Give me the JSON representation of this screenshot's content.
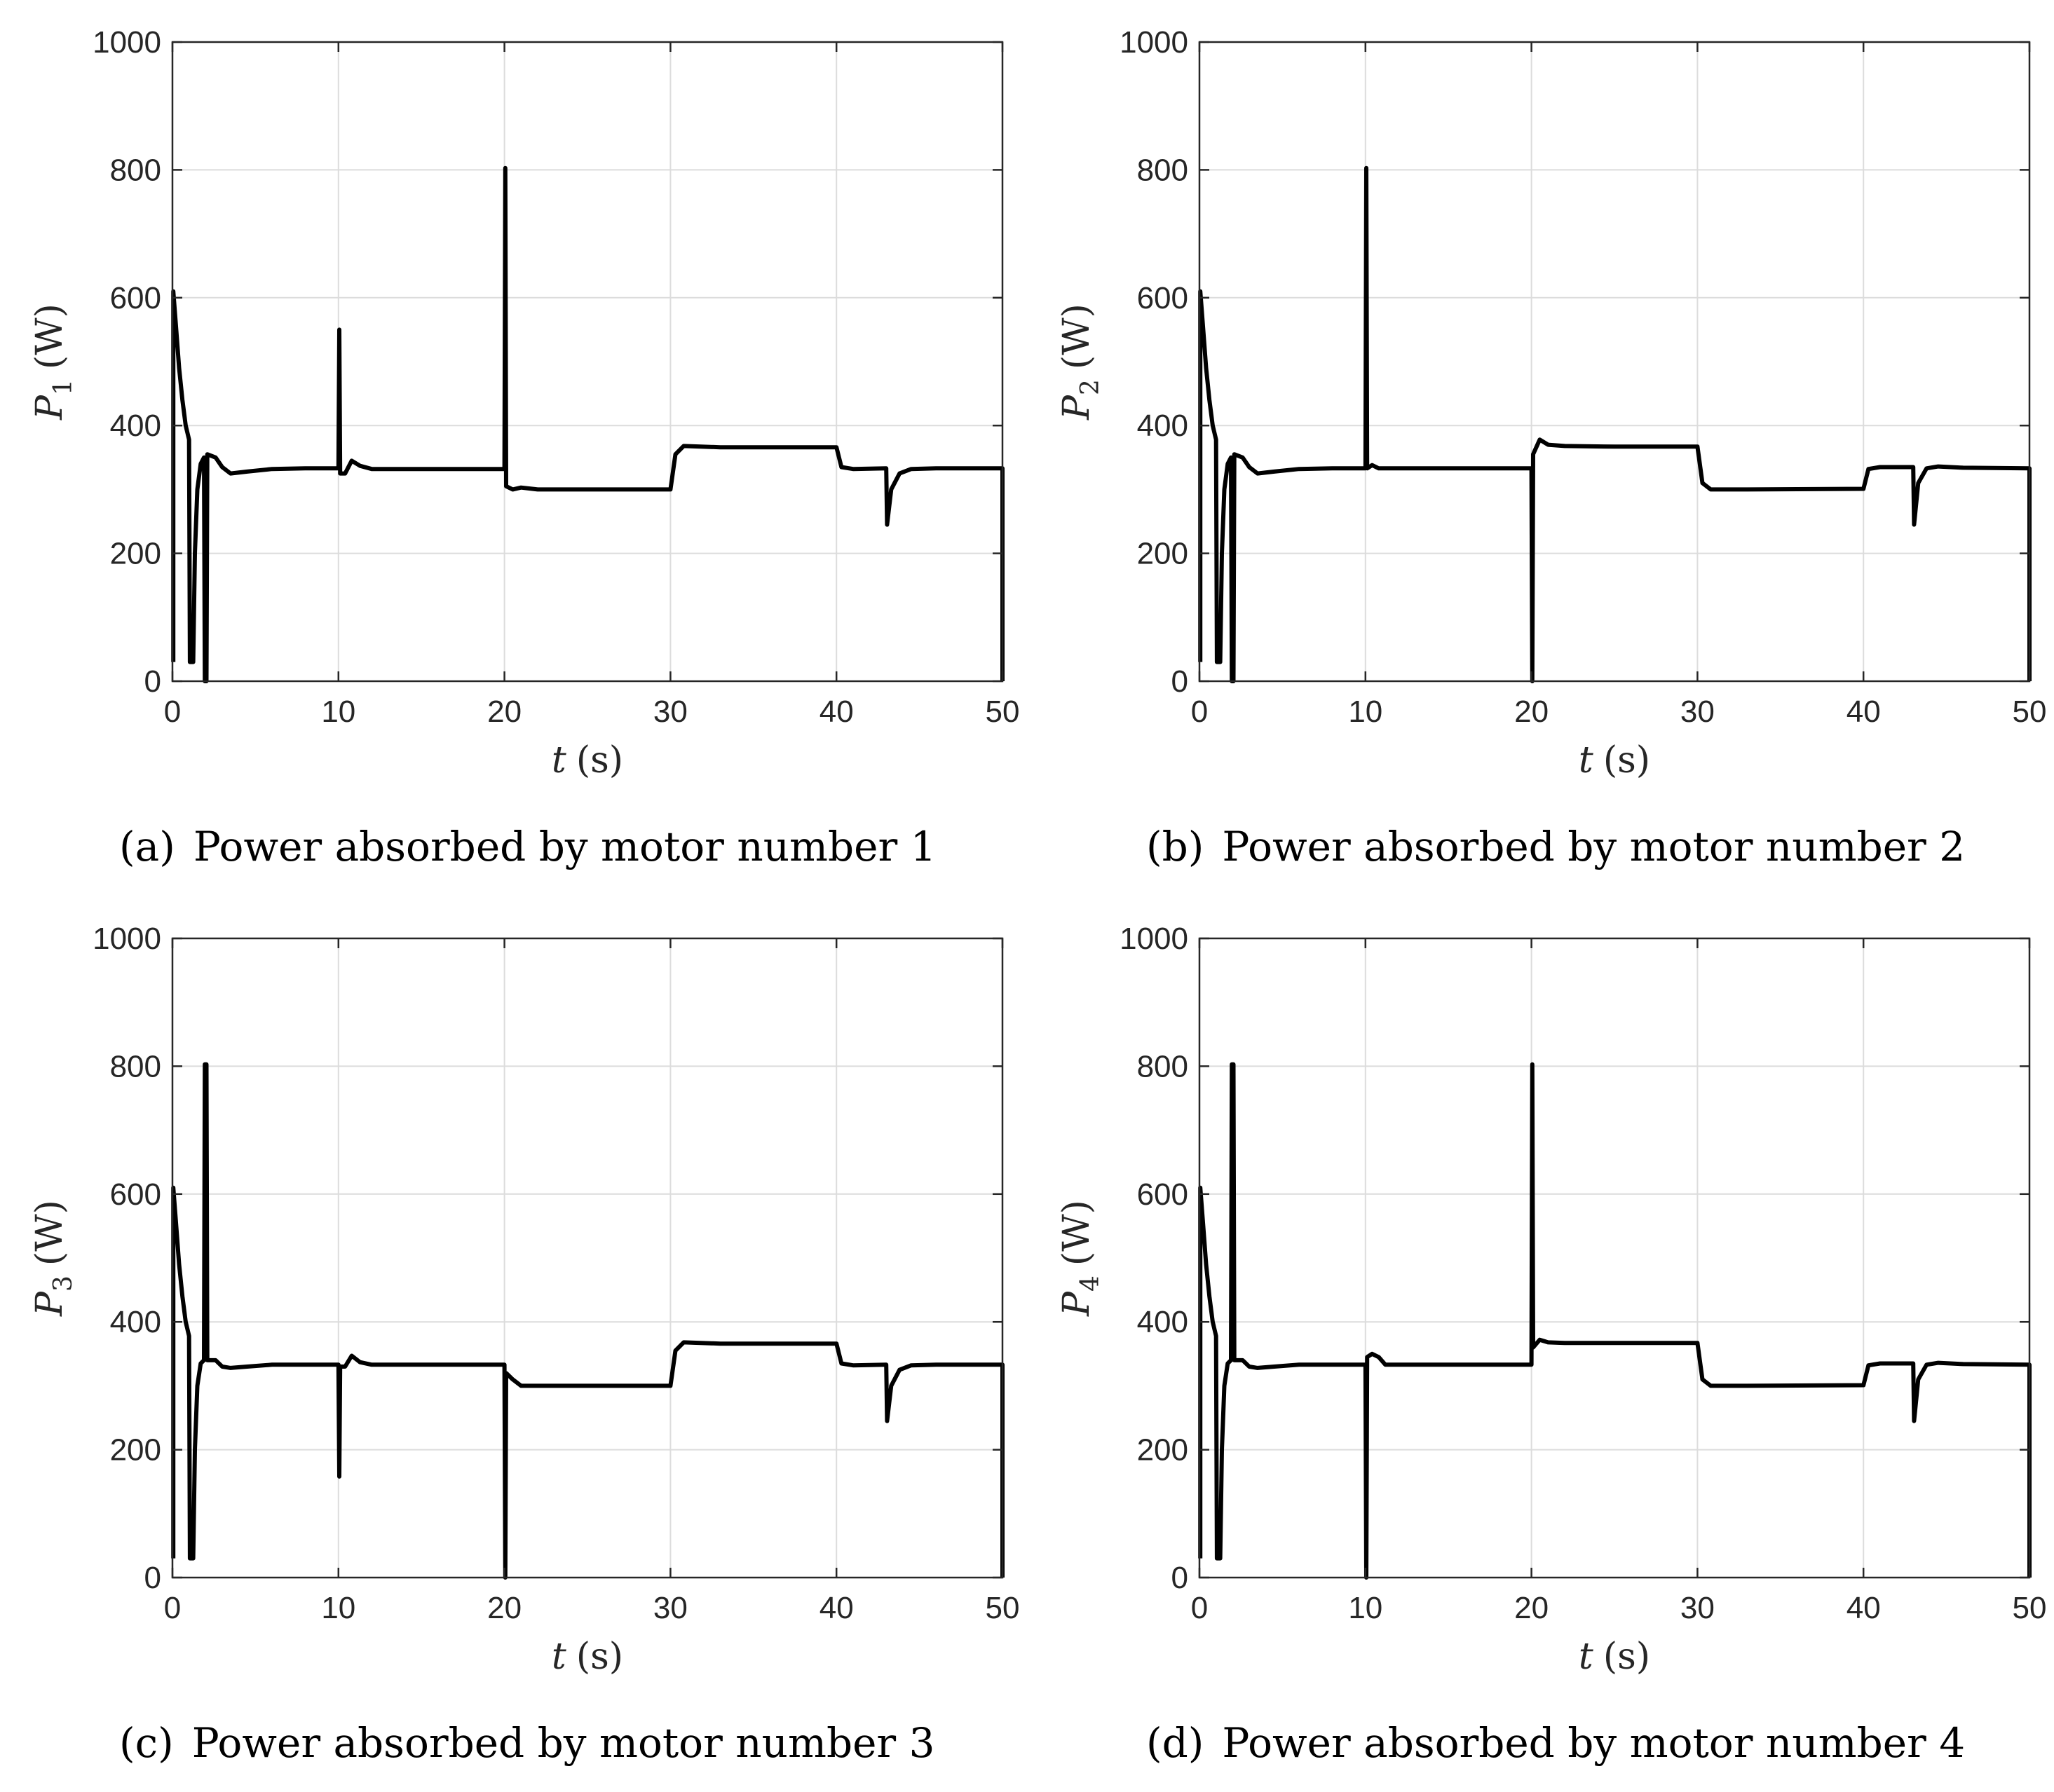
{
  "chart_data": [
    {
      "type": "line",
      "panel_id": "a",
      "caption_tag": "(a)",
      "caption_text": "Power absorbed by motor number 1",
      "ylabel_symbol": "P",
      "ylabel_sub": "1",
      "ylabel_unit": "(W)",
      "xlabel_symbol": "t",
      "xlabel_unit": "(s)",
      "xlim": [
        0,
        50
      ],
      "ylim": [
        0,
        1000
      ],
      "xticks": [
        "0",
        "10",
        "20",
        "30",
        "40",
        "50"
      ],
      "yticks": [
        "0",
        "200",
        "400",
        "600",
        "800",
        "1000"
      ],
      "grid": true,
      "series": [
        {
          "name": "P1",
          "points": [
            [
              0.05,
              30
            ],
            [
              0.05,
              610
            ],
            [
              0.2,
              560
            ],
            [
              0.4,
              490
            ],
            [
              0.6,
              440
            ],
            [
              0.8,
              400
            ],
            [
              1.0,
              378
            ],
            [
              1.05,
              30
            ],
            [
              1.25,
              30
            ],
            [
              1.35,
              200
            ],
            [
              1.5,
              300
            ],
            [
              1.7,
              340
            ],
            [
              1.9,
              350
            ],
            [
              1.95,
              0
            ],
            [
              2.05,
              0
            ],
            [
              2.1,
              355
            ],
            [
              2.6,
              350
            ],
            [
              3.0,
              335
            ],
            [
              3.5,
              325
            ],
            [
              4.5,
              328
            ],
            [
              6,
              332
            ],
            [
              8,
              333
            ],
            [
              10,
              333
            ],
            [
              10.05,
              550
            ],
            [
              10.1,
              325
            ],
            [
              10.4,
              325
            ],
            [
              10.8,
              345
            ],
            [
              11.3,
              337
            ],
            [
              12,
              332
            ],
            [
              15,
              332
            ],
            [
              20,
              332
            ],
            [
              20.05,
              803
            ],
            [
              20.1,
              305
            ],
            [
              20.5,
              300
            ],
            [
              21,
              303
            ],
            [
              22,
              300
            ],
            [
              25,
              300
            ],
            [
              30,
              300
            ],
            [
              30.3,
              355
            ],
            [
              30.8,
              368
            ],
            [
              33,
              366
            ],
            [
              40,
              366
            ],
            [
              40.3,
              335
            ],
            [
              41,
              332
            ],
            [
              43,
              333
            ],
            [
              43.05,
              245
            ],
            [
              43.3,
              300
            ],
            [
              43.8,
              325
            ],
            [
              44.5,
              332
            ],
            [
              46,
              333
            ],
            [
              50,
              333
            ],
            [
              50,
              0
            ]
          ]
        }
      ]
    },
    {
      "type": "line",
      "panel_id": "b",
      "caption_tag": "(b)",
      "caption_text": "Power absorbed by motor number 2",
      "ylabel_symbol": "P",
      "ylabel_sub": "2",
      "ylabel_unit": "(W)",
      "xlabel_symbol": "t",
      "xlabel_unit": "(s)",
      "xlim": [
        0,
        50
      ],
      "ylim": [
        0,
        1000
      ],
      "xticks": [
        "0",
        "10",
        "20",
        "30",
        "40",
        "50"
      ],
      "yticks": [
        "0",
        "200",
        "400",
        "600",
        "800",
        "1000"
      ],
      "grid": true,
      "series": [
        {
          "name": "P2",
          "points": [
            [
              0.05,
              30
            ],
            [
              0.05,
              610
            ],
            [
              0.2,
              560
            ],
            [
              0.4,
              490
            ],
            [
              0.6,
              440
            ],
            [
              0.8,
              400
            ],
            [
              1.0,
              378
            ],
            [
              1.05,
              30
            ],
            [
              1.25,
              30
            ],
            [
              1.35,
              200
            ],
            [
              1.5,
              300
            ],
            [
              1.7,
              340
            ],
            [
              1.9,
              350
            ],
            [
              1.95,
              0
            ],
            [
              2.05,
              0
            ],
            [
              2.1,
              355
            ],
            [
              2.6,
              350
            ],
            [
              3.0,
              335
            ],
            [
              3.5,
              325
            ],
            [
              4.5,
              328
            ],
            [
              6,
              332
            ],
            [
              8,
              333
            ],
            [
              10,
              333
            ],
            [
              10.05,
              803
            ],
            [
              10.1,
              333
            ],
            [
              10.4,
              338
            ],
            [
              10.8,
              333
            ],
            [
              12,
              333
            ],
            [
              15,
              333
            ],
            [
              20,
              333
            ],
            [
              20.05,
              0
            ],
            [
              20.1,
              355
            ],
            [
              20.5,
              378
            ],
            [
              21,
              370
            ],
            [
              22,
              368
            ],
            [
              25,
              367
            ],
            [
              30,
              367
            ],
            [
              30.3,
              310
            ],
            [
              30.8,
              300
            ],
            [
              33,
              300
            ],
            [
              40,
              301
            ],
            [
              40.3,
              332
            ],
            [
              41,
              335
            ],
            [
              43,
              335
            ],
            [
              43.05,
              245
            ],
            [
              43.3,
              310
            ],
            [
              43.8,
              333
            ],
            [
              44.5,
              336
            ],
            [
              46,
              334
            ],
            [
              50,
              333
            ],
            [
              50,
              0
            ]
          ]
        }
      ]
    },
    {
      "type": "line",
      "panel_id": "c",
      "caption_tag": "(c)",
      "caption_text": "Power absorbed by motor number 3",
      "ylabel_symbol": "P",
      "ylabel_sub": "3",
      "ylabel_unit": "(W)",
      "xlabel_symbol": "t",
      "xlabel_unit": "(s)",
      "xlim": [
        0,
        50
      ],
      "ylim": [
        0,
        1000
      ],
      "xticks": [
        "0",
        "10",
        "20",
        "30",
        "40",
        "50"
      ],
      "yticks": [
        "0",
        "200",
        "400",
        "600",
        "800",
        "1000"
      ],
      "grid": true,
      "series": [
        {
          "name": "P3",
          "points": [
            [
              0.05,
              30
            ],
            [
              0.05,
              610
            ],
            [
              0.2,
              560
            ],
            [
              0.4,
              490
            ],
            [
              0.6,
              440
            ],
            [
              0.8,
              400
            ],
            [
              1.0,
              378
            ],
            [
              1.05,
              30
            ],
            [
              1.25,
              30
            ],
            [
              1.35,
              200
            ],
            [
              1.5,
              300
            ],
            [
              1.7,
              335
            ],
            [
              1.9,
              340
            ],
            [
              1.95,
              803
            ],
            [
              2.05,
              803
            ],
            [
              2.1,
              340
            ],
            [
              2.6,
              340
            ],
            [
              3.0,
              330
            ],
            [
              3.5,
              328
            ],
            [
              4.5,
              330
            ],
            [
              6,
              333
            ],
            [
              8,
              333
            ],
            [
              10,
              333
            ],
            [
              10.05,
              158
            ],
            [
              10.1,
              330
            ],
            [
              10.4,
              330
            ],
            [
              10.8,
              347
            ],
            [
              11.3,
              337
            ],
            [
              12,
              333
            ],
            [
              15,
              333
            ],
            [
              20,
              333
            ],
            [
              20.05,
              0
            ],
            [
              20.1,
              320
            ],
            [
              20.5,
              310
            ],
            [
              21,
              300
            ],
            [
              22,
              300
            ],
            [
              25,
              300
            ],
            [
              30,
              300
            ],
            [
              30.3,
              355
            ],
            [
              30.8,
              368
            ],
            [
              33,
              366
            ],
            [
              40,
              366
            ],
            [
              40.3,
              335
            ],
            [
              41,
              332
            ],
            [
              43,
              333
            ],
            [
              43.05,
              245
            ],
            [
              43.3,
              300
            ],
            [
              43.8,
              325
            ],
            [
              44.5,
              332
            ],
            [
              46,
              333
            ],
            [
              50,
              333
            ],
            [
              50,
              0
            ]
          ]
        }
      ]
    },
    {
      "type": "line",
      "panel_id": "d",
      "caption_tag": "(d)",
      "caption_text": "Power absorbed by motor number 4",
      "ylabel_symbol": "P",
      "ylabel_sub": "4",
      "ylabel_unit": "(W)",
      "xlabel_symbol": "t",
      "xlabel_unit": "(s)",
      "xlim": [
        0,
        50
      ],
      "ylim": [
        0,
        1000
      ],
      "xticks": [
        "0",
        "10",
        "20",
        "30",
        "40",
        "50"
      ],
      "yticks": [
        "0",
        "200",
        "400",
        "600",
        "800",
        "1000"
      ],
      "grid": true,
      "series": [
        {
          "name": "P4",
          "points": [
            [
              0.05,
              30
            ],
            [
              0.05,
              610
            ],
            [
              0.2,
              560
            ],
            [
              0.4,
              490
            ],
            [
              0.6,
              440
            ],
            [
              0.8,
              400
            ],
            [
              1.0,
              378
            ],
            [
              1.05,
              30
            ],
            [
              1.25,
              30
            ],
            [
              1.35,
              200
            ],
            [
              1.5,
              300
            ],
            [
              1.7,
              335
            ],
            [
              1.9,
              340
            ],
            [
              1.95,
              803
            ],
            [
              2.05,
              803
            ],
            [
              2.1,
              340
            ],
            [
              2.6,
              340
            ],
            [
              3.0,
              330
            ],
            [
              3.5,
              328
            ],
            [
              4.5,
              330
            ],
            [
              6,
              333
            ],
            [
              8,
              333
            ],
            [
              10,
              333
            ],
            [
              10.05,
              0
            ],
            [
              10.1,
              345
            ],
            [
              10.4,
              350
            ],
            [
              10.8,
              345
            ],
            [
              11.2,
              333
            ],
            [
              12,
              333
            ],
            [
              15,
              333
            ],
            [
              20,
              333
            ],
            [
              20.05,
              803
            ],
            [
              20.1,
              360
            ],
            [
              20.5,
              372
            ],
            [
              21,
              368
            ],
            [
              22,
              367
            ],
            [
              25,
              367
            ],
            [
              30,
              367
            ],
            [
              30.3,
              310
            ],
            [
              30.8,
              300
            ],
            [
              33,
              300
            ],
            [
              40,
              301
            ],
            [
              40.3,
              332
            ],
            [
              41,
              335
            ],
            [
              43,
              335
            ],
            [
              43.05,
              245
            ],
            [
              43.3,
              310
            ],
            [
              43.8,
              333
            ],
            [
              44.5,
              336
            ],
            [
              46,
              334
            ],
            [
              50,
              333
            ],
            [
              50,
              0
            ]
          ]
        }
      ]
    }
  ]
}
